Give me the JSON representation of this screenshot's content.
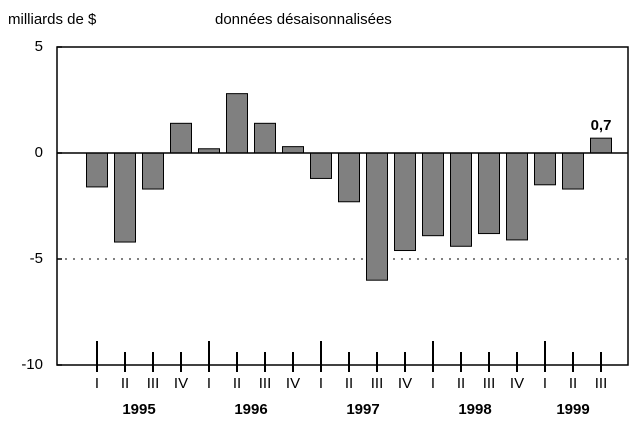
{
  "chart_data": {
    "type": "bar",
    "title": "données désaisonnalisées",
    "y_axis_label": "milliards de $",
    "categories": [
      "I",
      "II",
      "III",
      "IV",
      "I",
      "II",
      "III",
      "IV",
      "I",
      "II",
      "III",
      "IV",
      "I",
      "II",
      "III",
      "IV",
      "I",
      "II",
      "III"
    ],
    "groups": [
      {
        "label": "1995",
        "size": 4
      },
      {
        "label": "1996",
        "size": 4
      },
      {
        "label": "1997",
        "size": 4
      },
      {
        "label": "1998",
        "size": 4
      },
      {
        "label": "1999",
        "size": 3
      }
    ],
    "values": [
      -1.6,
      -4.2,
      -1.7,
      1.4,
      0.2,
      2.8,
      1.4,
      0.3,
      -1.2,
      -2.3,
      -6.0,
      -4.6,
      -3.9,
      -4.4,
      -3.8,
      -4.1,
      -1.5,
      -1.7,
      0.7
    ],
    "value_labels": [
      null,
      null,
      null,
      null,
      null,
      null,
      null,
      null,
      null,
      null,
      null,
      null,
      null,
      null,
      null,
      null,
      null,
      null,
      "0,7"
    ],
    "color": "#808080",
    "ylim": [
      -10,
      5
    ],
    "yticks": [
      -10,
      -5,
      0,
      5
    ],
    "reference_line": -5
  }
}
